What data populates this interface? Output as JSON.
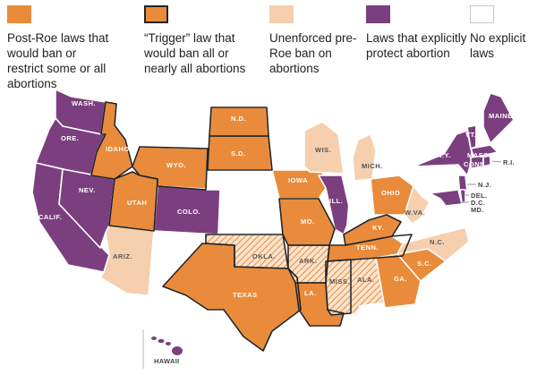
{
  "colors": {
    "post_roe": "#E98B3A",
    "trigger": "#E98B3A",
    "unenforced": "#F5CFAE",
    "protect": "#7B3F7F",
    "none": "#FFFFFF",
    "none_stroke": "#C8C8C8",
    "hatch_line": "#E98B3A",
    "hatch_bg": "#FBE3CD"
  },
  "legend": [
    {
      "key": "post_roe",
      "label": "Post-Roe laws that would ban or restrict some or all abortions"
    },
    {
      "key": "trigger",
      "label": "“Trigger” law that would ban all or nearly all abortions"
    },
    {
      "key": "unenforced",
      "label": "Unenforced pre-Roe ban on abortions"
    },
    {
      "key": "protect",
      "label": "Laws that explicitly protect abortion"
    },
    {
      "key": "none",
      "label": "No explicit laws"
    }
  ],
  "states": {
    "wash": "WASH.",
    "ore": "ORE.",
    "calif": "CALIF.",
    "nev": "NEV.",
    "idaho": "IDAHO",
    "utah": "UTAH",
    "ariz": "ARIZ.",
    "wyo": "WYO.",
    "colo": "COLO.",
    "nd": "N.D.",
    "sd": "S.D.",
    "texas": "TEXAS",
    "okla": "OKLA.",
    "iowa": "IOWA",
    "mo": "MO.",
    "ark": "ARK.",
    "la": "LA.",
    "wis": "WIS.",
    "mich": "MICH.",
    "ill": "ILL.",
    "ohio": "OHIO",
    "ky": "KY.",
    "tenn": "TENN.",
    "miss": "MISS.",
    "ala": "ALA.",
    "ga": "GA.",
    "sc": "S.C.",
    "nc": "N.C.",
    "wva": "W.VA.",
    "ny": "N.Y.",
    "vt": "VT.",
    "maine": "MAINE",
    "mass": "MASS.",
    "conn": "CONN.",
    "ri": "R.I.",
    "nj": "N.J.",
    "del": "DEL.",
    "dc": "D.C.",
    "md": "MD.",
    "hawaii": "HAWAII"
  }
}
